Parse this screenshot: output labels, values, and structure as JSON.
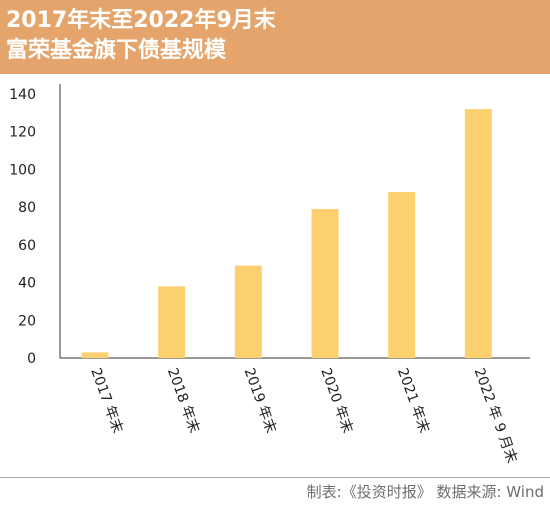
{
  "header": {
    "title_line1": "2017年末至2022年9月末",
    "title_line2": "富荣基金旗下债基规模"
  },
  "source": "制表:《投资时报》 数据来源: Wind",
  "colors": {
    "header_bg": "#e4a46b",
    "bar": "#fdd06f",
    "axis": "#333333"
  },
  "chart_data": {
    "type": "bar",
    "title": "2017年末至2022年9月末 富荣基金旗下债基规模",
    "categories": [
      "2017 年末",
      "2018 年末",
      "2019 年末",
      "2020 年末",
      "2021 年末",
      "2022 年 9 月末"
    ],
    "values": [
      3,
      38,
      49,
      79,
      88,
      132
    ],
    "ylim": [
      0,
      140
    ],
    "yticks": [
      0,
      20,
      40,
      60,
      80,
      100,
      120,
      140
    ],
    "xlabel": "",
    "ylabel": "",
    "grid": false,
    "legend": "none"
  }
}
